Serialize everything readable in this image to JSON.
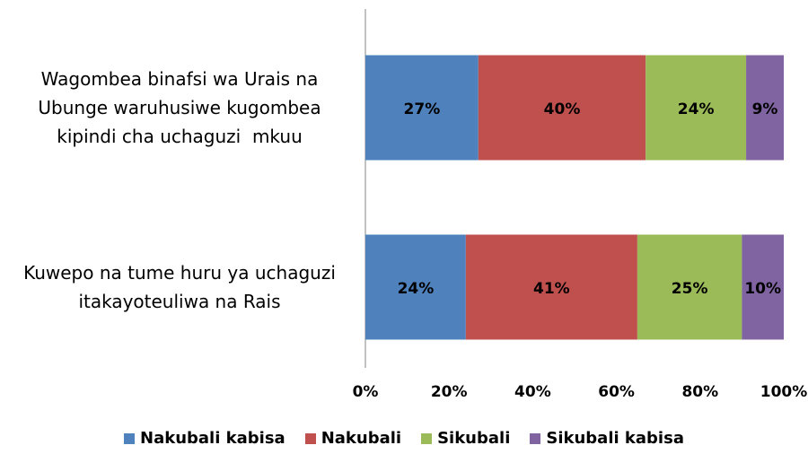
{
  "chart_data": {
    "type": "stacked-bar-horizontal",
    "categories": [
      "Wagombea binafsi wa Urais na\nUbunge waruhusiwe kugombea\nkipindi cha uchaguzi  mkuu",
      "Kuwepo na tume huru ya uchaguzi\nitakayoteuliwa na Rais"
    ],
    "series": [
      {
        "name": "Nakubali kabisa",
        "color": "#4f81bd",
        "values": [
          27,
          24
        ],
        "value_labels": [
          "27%",
          "24%"
        ]
      },
      {
        "name": "Nakubali",
        "color": "#c0504d",
        "values": [
          40,
          41
        ],
        "value_labels": [
          "40%",
          "41%"
        ]
      },
      {
        "name": "Sikubali",
        "color": "#9bbb59",
        "values": [
          24,
          25
        ],
        "value_labels": [
          "24%",
          "25%"
        ]
      },
      {
        "name": "Sikubali kabisa",
        "color": "#8064a2",
        "values": [
          9,
          10
        ],
        "value_labels": [
          "9%",
          "10%"
        ]
      }
    ],
    "xlim": [
      0,
      100
    ],
    "xticks": [
      {
        "value": 0,
        "label": "0%"
      },
      {
        "value": 20,
        "label": "20%"
      },
      {
        "value": 40,
        "label": "40%"
      },
      {
        "value": 60,
        "label": "60%"
      },
      {
        "value": 80,
        "label": "80%"
      },
      {
        "value": 100,
        "label": "100%"
      }
    ],
    "legend": "bottom"
  }
}
